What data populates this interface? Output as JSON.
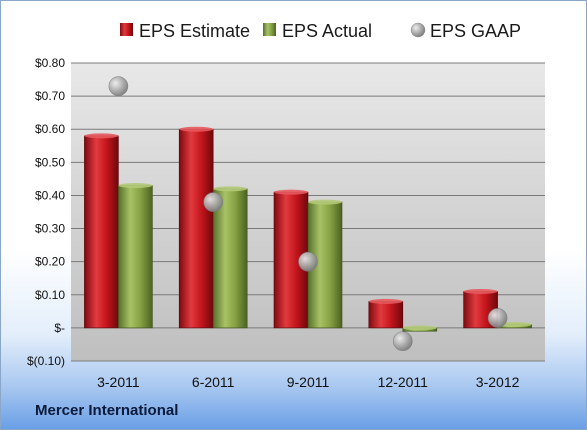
{
  "chart_data": {
    "type": "bar",
    "categories": [
      "3-2011",
      "6-2011",
      "9-2011",
      "12-2011",
      "3-2012"
    ],
    "series": [
      {
        "name": "EPS Estimate",
        "kind": "bar",
        "color": "#c0141b",
        "values": [
          0.58,
          0.6,
          0.41,
          0.08,
          0.11
        ]
      },
      {
        "name": "EPS Actual",
        "kind": "bar",
        "color": "#7e9a3a",
        "values": [
          0.43,
          0.42,
          0.38,
          -0.01,
          0.01
        ]
      },
      {
        "name": "EPS GAAP",
        "kind": "marker",
        "color": "#9a9a9a",
        "values": [
          0.73,
          0.38,
          0.2,
          -0.04,
          0.03
        ]
      }
    ],
    "yticks": [
      {
        "value": 0.8,
        "label": "$0.80"
      },
      {
        "value": 0.7,
        "label": "$0.70"
      },
      {
        "value": 0.6,
        "label": "$0.60"
      },
      {
        "value": 0.5,
        "label": "$0.50"
      },
      {
        "value": 0.4,
        "label": "$0.40"
      },
      {
        "value": 0.3,
        "label": "$0.30"
      },
      {
        "value": 0.2,
        "label": "$0.20"
      },
      {
        "value": 0.1,
        "label": "$0.10"
      },
      {
        "value": 0.0,
        "label": "$-"
      },
      {
        "value": -0.1,
        "label": "$(0.10)"
      }
    ],
    "ylim": [
      -0.1,
      0.8
    ],
    "grid": true,
    "legend_position": "top",
    "plot_background": "#c6c6c6"
  },
  "footer": {
    "company": "Mercer International"
  }
}
